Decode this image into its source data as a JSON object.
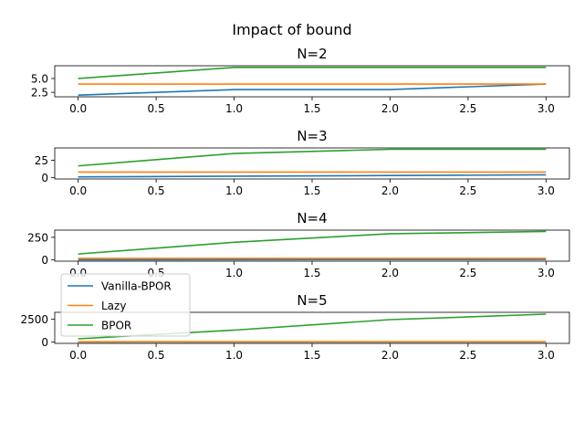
{
  "figure": {
    "title": "Impact of bound"
  },
  "legend": {
    "placement": "overlapping lower-left, between N=4 and N=5 panels",
    "entries": [
      {
        "name": "Vanilla-BPOR",
        "color": "#1f77b4"
      },
      {
        "name": "Lazy",
        "color": "#ff7f0e"
      },
      {
        "name": "BPOR",
        "color": "#2ca02c"
      }
    ]
  },
  "chart_data": [
    {
      "type": "line",
      "title": "N=2",
      "x": [
        0,
        1,
        2,
        3
      ],
      "xlim": [
        -0.15,
        3.15
      ],
      "ylim": [
        1.7,
        7.3
      ],
      "xticks": [
        0.0,
        0.5,
        1.0,
        1.5,
        2.0,
        2.5,
        3.0
      ],
      "xtick_labels": [
        "0.0",
        "0.5",
        "1.0",
        "1.5",
        "2.0",
        "2.5",
        "3.0"
      ],
      "yticks": [
        2.5,
        5.0
      ],
      "ytick_labels": [
        "2.5",
        "5.0"
      ],
      "grid": false,
      "series": [
        {
          "name": "Vanilla-BPOR",
          "color": "#1f77b4",
          "values": [
            2,
            3,
            3,
            4
          ]
        },
        {
          "name": "Lazy",
          "color": "#ff7f0e",
          "values": [
            4,
            4,
            4,
            4
          ]
        },
        {
          "name": "BPOR",
          "color": "#2ca02c",
          "values": [
            5,
            7,
            7,
            7
          ]
        }
      ]
    },
    {
      "type": "line",
      "title": "N=3",
      "x": [
        0,
        1,
        2,
        3
      ],
      "xlim": [
        -0.15,
        3.15
      ],
      "ylim": [
        -2,
        43
      ],
      "xticks": [
        0.0,
        0.5,
        1.0,
        1.5,
        2.0,
        2.5,
        3.0
      ],
      "xtick_labels": [
        "0.0",
        "0.5",
        "1.0",
        "1.5",
        "2.0",
        "2.5",
        "3.0"
      ],
      "yticks": [
        0,
        25
      ],
      "ytick_labels": [
        "0",
        "25"
      ],
      "grid": false,
      "series": [
        {
          "name": "Vanilla-BPOR",
          "color": "#1f77b4",
          "values": [
            1,
            2,
            3,
            4
          ]
        },
        {
          "name": "Lazy",
          "color": "#ff7f0e",
          "values": [
            8,
            8,
            8,
            8
          ]
        },
        {
          "name": "BPOR",
          "color": "#2ca02c",
          "values": [
            17,
            35,
            41,
            41
          ]
        }
      ]
    },
    {
      "type": "line",
      "title": "N=4",
      "x": [
        0,
        1,
        2,
        3
      ],
      "xlim": [
        -0.15,
        3.15
      ],
      "ylim": [
        -15,
        330
      ],
      "xticks": [
        0.0,
        0.5,
        1.0,
        1.5,
        2.0,
        2.5,
        3.0
      ],
      "xtick_labels": [
        "0.0",
        "0.5",
        "1.0",
        "1.5",
        "2.0",
        "2.5",
        "3.0"
      ],
      "yticks": [
        0,
        250
      ],
      "ytick_labels": [
        "0",
        "250"
      ],
      "grid": false,
      "series": [
        {
          "name": "Vanilla-BPOR",
          "color": "#1f77b4",
          "values": [
            1,
            2,
            3,
            4
          ]
        },
        {
          "name": "Lazy",
          "color": "#ff7f0e",
          "values": [
            16,
            16,
            16,
            16
          ]
        },
        {
          "name": "BPOR",
          "color": "#2ca02c",
          "values": [
            65,
            195,
            290,
            315
          ]
        }
      ]
    },
    {
      "type": "line",
      "title": "N=5",
      "x": [
        0,
        1,
        2,
        3
      ],
      "xlim": [
        -0.15,
        3.15
      ],
      "ylim": [
        -150,
        3250
      ],
      "xticks": [
        0.0,
        0.5,
        1.0,
        1.5,
        2.0,
        2.5,
        3.0
      ],
      "xtick_labels": [
        "0.0",
        "0.5",
        "1.0",
        "1.5",
        "2.0",
        "2.5",
        "3.0"
      ],
      "yticks": [
        0,
        2500
      ],
      "ytick_labels": [
        "0",
        "2500"
      ],
      "grid": false,
      "series": [
        {
          "name": "Vanilla-BPOR",
          "color": "#1f77b4",
          "values": [
            1,
            2,
            3,
            4
          ]
        },
        {
          "name": "Lazy",
          "color": "#ff7f0e",
          "values": [
            32,
            32,
            32,
            32
          ]
        },
        {
          "name": "BPOR",
          "color": "#2ca02c",
          "values": [
            350,
            1300,
            2450,
            3050
          ]
        }
      ]
    }
  ]
}
